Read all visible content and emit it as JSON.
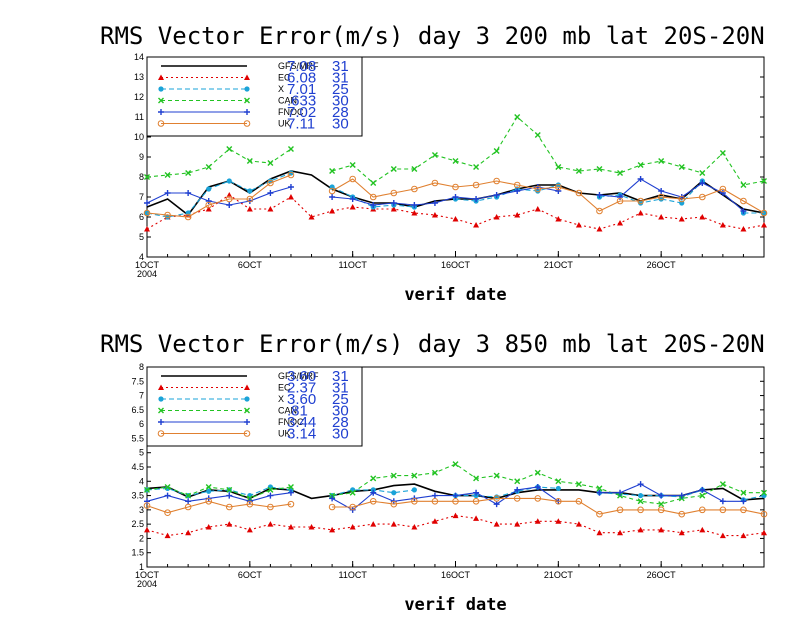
{
  "chart_data": [
    {
      "type": "line",
      "title": "RMS Vector Error(m/s) day 3  200 mb   lat 20S-20N",
      "xlabel": "verif date",
      "ylabel": "",
      "x": [
        "2004-10-01",
        "2004-10-02",
        "2004-10-03",
        "2004-10-04",
        "2004-10-05",
        "2004-10-06",
        "2004-10-07",
        "2004-10-08",
        "2004-10-09",
        "2004-10-10",
        "2004-10-11",
        "2004-10-12",
        "2004-10-13",
        "2004-10-14",
        "2004-10-15",
        "2004-10-16",
        "2004-10-17",
        "2004-10-18",
        "2004-10-19",
        "2004-10-20",
        "2004-10-21",
        "2004-10-22",
        "2004-10-23",
        "2004-10-24",
        "2004-10-25",
        "2004-10-26",
        "2004-10-27",
        "2004-10-28",
        "2004-10-29",
        "2004-10-30",
        "2004-10-31"
      ],
      "xticks": [
        {
          "x": "2004-10-01",
          "label": "1OCT",
          "sub": "2004"
        },
        {
          "x": "2004-10-06",
          "label": "6OCT",
          "sub": ""
        },
        {
          "x": "2004-10-11",
          "label": "11OCT",
          "sub": ""
        },
        {
          "x": "2004-10-16",
          "label": "16OCT",
          "sub": ""
        },
        {
          "x": "2004-10-21",
          "label": "21OCT",
          "sub": ""
        },
        {
          "x": "2004-10-26",
          "label": "26OCT",
          "sub": ""
        }
      ],
      "xlim": [
        "2004-10-01",
        "2004-10-31"
      ],
      "ylim": [
        4,
        14
      ],
      "yticks": [
        4,
        5,
        6,
        7,
        8,
        9,
        10,
        11,
        12,
        13,
        14
      ],
      "grid": false,
      "legend_position": "top-left",
      "series": [
        {
          "name": "GFS/MRF",
          "stat1": "7.08",
          "stat2": "31",
          "color": "#000000",
          "dash": "",
          "marker": "none",
          "values": [
            6.5,
            6.9,
            6.1,
            7.5,
            7.8,
            7.2,
            7.9,
            8.3,
            8.1,
            7.4,
            7.0,
            6.7,
            6.7,
            6.5,
            6.8,
            6.9,
            6.9,
            7.1,
            7.4,
            7.6,
            7.6,
            7.2,
            7.1,
            7.2,
            6.8,
            7.1,
            6.9,
            7.8,
            7.1,
            6.4,
            6.2
          ]
        },
        {
          "name": "EC",
          "stat1": "6.08",
          "stat2": "31",
          "color": "#e00000",
          "dash": "2,3",
          "marker": "triangle",
          "values": [
            5.4,
            6.0,
            6.1,
            6.4,
            7.1,
            6.4,
            6.4,
            7.0,
            6.0,
            6.3,
            6.5,
            6.4,
            6.4,
            6.2,
            6.1,
            5.9,
            5.6,
            6.0,
            6.1,
            6.4,
            5.9,
            5.6,
            5.4,
            5.7,
            6.2,
            6.0,
            5.9,
            6.0,
            5.6,
            5.4,
            5.6
          ]
        },
        {
          "name": "X",
          "stat1": "7.01",
          "stat2": "25",
          "color": "#1aa3d8",
          "dash": "5,3",
          "marker": "circle",
          "values": [
            6.2,
            6.0,
            6.2,
            7.4,
            7.8,
            7.3,
            7.8,
            8.2,
            null,
            7.5,
            7.0,
            6.5,
            6.6,
            6.5,
            null,
            6.9,
            6.8,
            7.0,
            7.4,
            7.3,
            7.6,
            null,
            7.0,
            7.1,
            6.7,
            6.9,
            6.7,
            7.8,
            null,
            6.2,
            6.2
          ]
        },
        {
          "name": "CAN",
          "stat1": ".633",
          "stat2": "30",
          "color": "#22c322",
          "dash": "4,3",
          "marker": "x",
          "values": [
            8.0,
            8.1,
            8.2,
            8.5,
            9.4,
            8.8,
            8.7,
            9.4,
            null,
            8.3,
            8.6,
            7.7,
            8.4,
            8.4,
            9.1,
            8.8,
            8.5,
            9.3,
            11.0,
            10.1,
            8.5,
            8.3,
            8.4,
            8.2,
            8.6,
            8.8,
            8.5,
            8.2,
            9.2,
            7.6,
            7.8
          ]
        },
        {
          "name": "FNOC",
          "stat1": "7.02",
          "stat2": "28",
          "color": "#1f3fd0",
          "dash": "",
          "marker": "plus",
          "values": [
            6.7,
            7.2,
            7.2,
            6.8,
            6.6,
            6.8,
            7.2,
            7.5,
            null,
            7.0,
            6.9,
            6.6,
            6.7,
            6.6,
            6.7,
            7.0,
            6.9,
            7.1,
            7.3,
            7.5,
            7.3,
            null,
            7.1,
            7.0,
            7.9,
            7.3,
            7.0,
            7.7,
            7.2,
            6.3,
            null
          ]
        },
        {
          "name": "UK",
          "stat1": "7.11",
          "stat2": "30",
          "color": "#e08030",
          "dash": "",
          "marker": "ocircle",
          "values": [
            6.2,
            6.1,
            6.0,
            6.6,
            6.9,
            6.9,
            7.7,
            8.1,
            null,
            7.3,
            7.9,
            7.0,
            7.2,
            7.4,
            7.7,
            7.5,
            7.6,
            7.8,
            7.6,
            7.4,
            7.5,
            7.2,
            6.3,
            6.8,
            6.8,
            7.0,
            6.9,
            7.0,
            7.4,
            6.8,
            6.2
          ]
        }
      ]
    },
    {
      "type": "line",
      "title": "RMS Vector Error(m/s) day 3  850 mb   lat 20S-20N",
      "xlabel": "verif date",
      "ylabel": "",
      "x": [
        "2004-10-01",
        "2004-10-02",
        "2004-10-03",
        "2004-10-04",
        "2004-10-05",
        "2004-10-06",
        "2004-10-07",
        "2004-10-08",
        "2004-10-09",
        "2004-10-10",
        "2004-10-11",
        "2004-10-12",
        "2004-10-13",
        "2004-10-14",
        "2004-10-15",
        "2004-10-16",
        "2004-10-17",
        "2004-10-18",
        "2004-10-19",
        "2004-10-20",
        "2004-10-21",
        "2004-10-22",
        "2004-10-23",
        "2004-10-24",
        "2004-10-25",
        "2004-10-26",
        "2004-10-27",
        "2004-10-28",
        "2004-10-29",
        "2004-10-30",
        "2004-10-31"
      ],
      "xticks": [
        {
          "x": "2004-10-01",
          "label": "1OCT",
          "sub": "2004"
        },
        {
          "x": "2004-10-06",
          "label": "6OCT",
          "sub": ""
        },
        {
          "x": "2004-10-11",
          "label": "11OCT",
          "sub": ""
        },
        {
          "x": "2004-10-16",
          "label": "16OCT",
          "sub": ""
        },
        {
          "x": "2004-10-21",
          "label": "21OCT",
          "sub": ""
        },
        {
          "x": "2004-10-26",
          "label": "26OCT",
          "sub": ""
        }
      ],
      "xlim": [
        "2004-10-01",
        "2004-10-31"
      ],
      "ylim": [
        1,
        8
      ],
      "yticks": [
        1,
        1.5,
        2,
        2.5,
        3,
        3.5,
        4,
        4.5,
        5,
        5.5,
        6,
        6.5,
        7,
        7.5,
        8
      ],
      "grid": false,
      "legend_position": "top-left",
      "series": [
        {
          "name": "GFS/MRF",
          "stat1": "3.60",
          "stat2": "31",
          "color": "#000000",
          "dash": "",
          "marker": "none",
          "values": [
            3.75,
            3.8,
            3.45,
            3.7,
            3.65,
            3.4,
            3.75,
            3.7,
            3.4,
            3.5,
            3.65,
            3.7,
            3.85,
            3.9,
            3.65,
            3.5,
            3.5,
            3.4,
            3.6,
            3.7,
            3.7,
            3.7,
            3.6,
            3.6,
            3.5,
            3.5,
            3.5,
            3.7,
            3.75,
            3.35,
            3.4
          ]
        },
        {
          "name": "EC",
          "stat1": "2.37",
          "stat2": "31",
          "color": "#e00000",
          "dash": "2,3",
          "marker": "triangle",
          "values": [
            2.3,
            2.1,
            2.2,
            2.4,
            2.5,
            2.3,
            2.5,
            2.4,
            2.4,
            2.3,
            2.4,
            2.5,
            2.5,
            2.4,
            2.6,
            2.8,
            2.7,
            2.5,
            2.5,
            2.6,
            2.6,
            2.5,
            2.2,
            2.2,
            2.3,
            2.3,
            2.2,
            2.3,
            2.1,
            2.1,
            2.2
          ]
        },
        {
          "name": "X",
          "stat1": "3.60",
          "stat2": "25",
          "color": "#1aa3d8",
          "dash": "5,3",
          "marker": "circle",
          "values": [
            3.7,
            3.75,
            3.5,
            3.65,
            3.7,
            3.5,
            3.8,
            3.7,
            null,
            3.5,
            3.7,
            3.7,
            3.6,
            3.7,
            null,
            3.5,
            3.5,
            3.45,
            3.65,
            3.8,
            3.75,
            null,
            3.6,
            3.55,
            3.5,
            3.5,
            3.45,
            3.7,
            null,
            3.35,
            3.5
          ]
        },
        {
          "name": "CAN",
          "stat1": ".81",
          "stat2": "30",
          "color": "#22c322",
          "dash": "4,3",
          "marker": "x",
          "values": [
            3.7,
            3.8,
            3.5,
            3.8,
            3.7,
            3.4,
            3.7,
            3.8,
            null,
            3.5,
            3.6,
            4.1,
            4.2,
            4.2,
            4.3,
            4.6,
            4.1,
            4.2,
            4.0,
            4.3,
            4.0,
            3.9,
            3.75,
            3.5,
            3.3,
            3.2,
            3.4,
            3.5,
            3.9,
            3.6,
            3.6
          ]
        },
        {
          "name": "FNOC",
          "stat1": "3.44",
          "stat2": "28",
          "color": "#1f3fd0",
          "dash": "",
          "marker": "plus",
          "values": [
            3.3,
            3.5,
            3.3,
            3.4,
            3.5,
            3.3,
            3.5,
            3.6,
            null,
            3.4,
            3.0,
            3.6,
            3.3,
            3.4,
            3.5,
            3.5,
            3.6,
            3.2,
            3.7,
            3.8,
            3.3,
            null,
            3.6,
            3.6,
            3.9,
            3.5,
            3.5,
            3.7,
            3.3,
            3.3,
            null
          ]
        },
        {
          "name": "UK",
          "stat1": "3.14",
          "stat2": "30",
          "color": "#e08030",
          "dash": "",
          "marker": "ocircle",
          "values": [
            3.15,
            2.9,
            3.1,
            3.3,
            3.1,
            3.2,
            3.1,
            3.2,
            null,
            3.1,
            3.1,
            3.3,
            3.2,
            3.3,
            3.3,
            3.3,
            3.3,
            3.4,
            3.4,
            3.4,
            3.3,
            3.3,
            2.85,
            3.0,
            3.0,
            3.0,
            2.85,
            3.0,
            3.0,
            3.0,
            2.85
          ]
        }
      ]
    }
  ]
}
